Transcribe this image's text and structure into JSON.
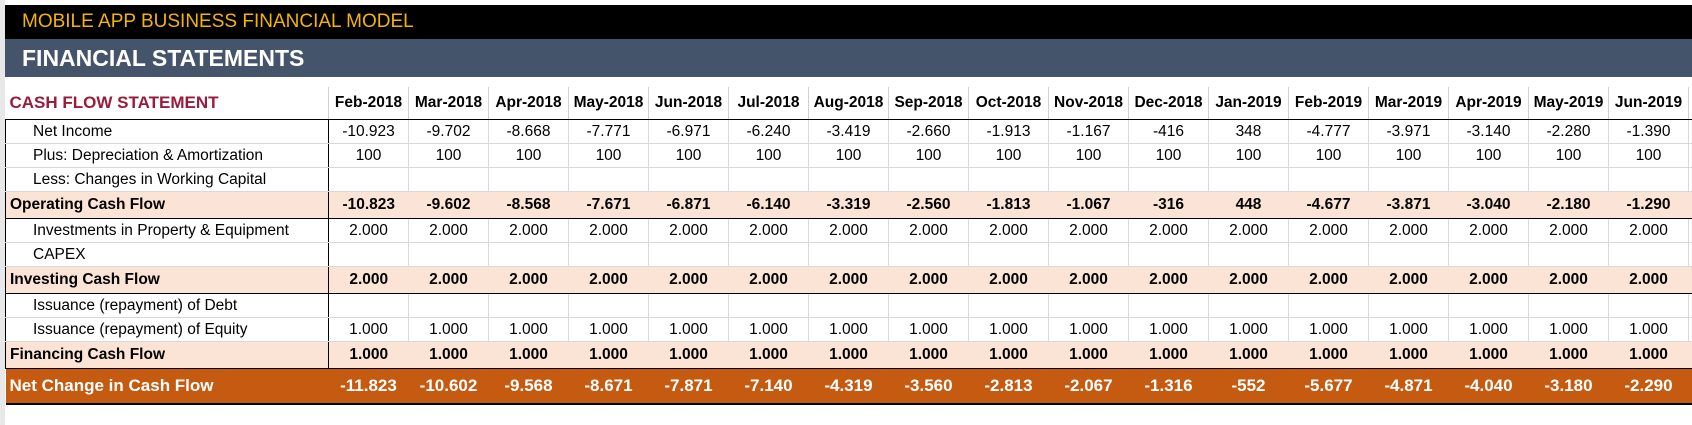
{
  "app_title": "MOBILE APP BUSINESS FINANCIAL MODEL",
  "section_title": "FINANCIAL STATEMENTS",
  "table": {
    "title": "CASH FLOW STATEMENT",
    "months": [
      "Feb-2018",
      "Mar-2018",
      "Apr-2018",
      "May-2018",
      "Jun-2018",
      "Jul-2018",
      "Aug-2018",
      "Sep-2018",
      "Oct-2018",
      "Nov-2018",
      "Dec-2018",
      "Jan-2019",
      "Feb-2019",
      "Mar-2019",
      "Apr-2019",
      "May-2019",
      "Jun-2019"
    ],
    "rows": [
      {
        "kind": "item",
        "label": "Net Income",
        "values": [
          "-10.923",
          "-9.702",
          "-8.668",
          "-7.771",
          "-6.971",
          "-6.240",
          "-3.419",
          "-2.660",
          "-1.913",
          "-1.167",
          "-416",
          "348",
          "-4.777",
          "-3.971",
          "-3.140",
          "-2.280",
          "-1.390"
        ]
      },
      {
        "kind": "item",
        "label": "Plus: Depreciation & Amortization",
        "values": [
          "100",
          "100",
          "100",
          "100",
          "100",
          "100",
          "100",
          "100",
          "100",
          "100",
          "100",
          "100",
          "100",
          "100",
          "100",
          "100",
          "100"
        ]
      },
      {
        "kind": "item",
        "label": "Less: Changes in Working Capital",
        "values": [
          "",
          "",
          "",
          "",
          "",
          "",
          "",
          "",
          "",
          "",
          "",
          "",
          "",
          "",
          "",
          "",
          ""
        ]
      },
      {
        "kind": "total",
        "label": "Operating Cash Flow",
        "values": [
          "-10.823",
          "-9.602",
          "-8.568",
          "-7.671",
          "-6.871",
          "-6.140",
          "-3.319",
          "-2.560",
          "-1.813",
          "-1.067",
          "-316",
          "448",
          "-4.677",
          "-3.871",
          "-3.040",
          "-2.180",
          "-1.290"
        ]
      },
      {
        "kind": "item",
        "label": "Investments in Property & Equipment",
        "values": [
          "2.000",
          "2.000",
          "2.000",
          "2.000",
          "2.000",
          "2.000",
          "2.000",
          "2.000",
          "2.000",
          "2.000",
          "2.000",
          "2.000",
          "2.000",
          "2.000",
          "2.000",
          "2.000",
          "2.000"
        ]
      },
      {
        "kind": "item",
        "label": "CAPEX",
        "values": [
          "",
          "",
          "",
          "",
          "",
          "",
          "",
          "",
          "",
          "",
          "",
          "",
          "",
          "",
          "",
          "",
          ""
        ]
      },
      {
        "kind": "total",
        "label": "Investing Cash Flow",
        "values": [
          "2.000",
          "2.000",
          "2.000",
          "2.000",
          "2.000",
          "2.000",
          "2.000",
          "2.000",
          "2.000",
          "2.000",
          "2.000",
          "2.000",
          "2.000",
          "2.000",
          "2.000",
          "2.000",
          "2.000"
        ]
      },
      {
        "kind": "item",
        "label": "Issuance (repayment) of Debt",
        "values": [
          "",
          "",
          "",
          "",
          "",
          "",
          "",
          "",
          "",
          "",
          "",
          "",
          "",
          "",
          "",
          "",
          ""
        ]
      },
      {
        "kind": "item",
        "label": "Issuance (repayment) of Equity",
        "values": [
          "1.000",
          "1.000",
          "1.000",
          "1.000",
          "1.000",
          "1.000",
          "1.000",
          "1.000",
          "1.000",
          "1.000",
          "1.000",
          "1.000",
          "1.000",
          "1.000",
          "1.000",
          "1.000",
          "1.000"
        ]
      },
      {
        "kind": "total",
        "label": "Financing Cash Flow",
        "values": [
          "1.000",
          "1.000",
          "1.000",
          "1.000",
          "1.000",
          "1.000",
          "1.000",
          "1.000",
          "1.000",
          "1.000",
          "1.000",
          "1.000",
          "1.000",
          "1.000",
          "1.000",
          "1.000",
          "1.000"
        ]
      },
      {
        "kind": "net",
        "label": "Net Change in Cash Flow",
        "values": [
          "-11.823",
          "-10.602",
          "-9.568",
          "-8.671",
          "-7.871",
          "-7.140",
          "-4.319",
          "-3.560",
          "-2.813",
          "-2.067",
          "-1.316",
          "-552",
          "-5.677",
          "-4.871",
          "-4.040",
          "-3.180",
          "-2.290"
        ]
      }
    ]
  },
  "colors": {
    "top_bar_bg": "#000000",
    "top_bar_text": "#f5b400",
    "header_bg": "#44546a",
    "title_text": "#9a1c3c",
    "subtotal_bg": "#fbe4d5",
    "net_bg": "#c55a11"
  }
}
